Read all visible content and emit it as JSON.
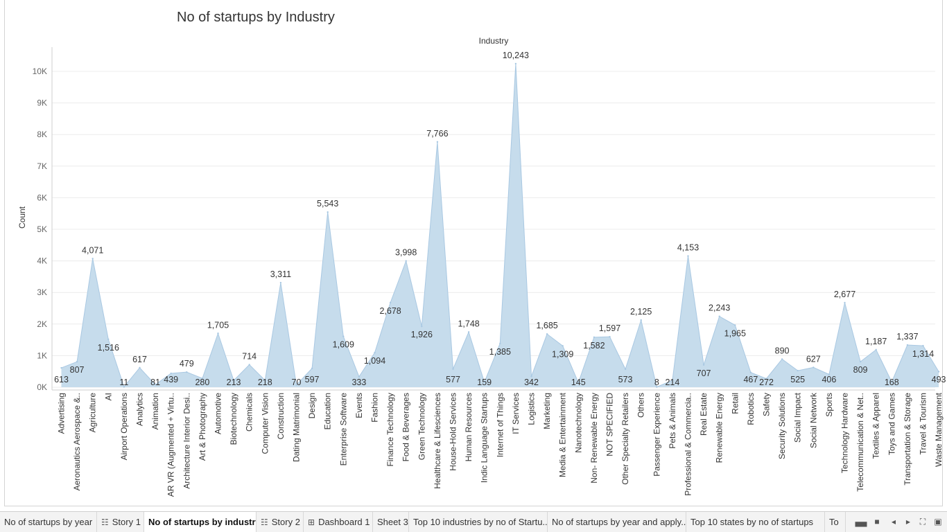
{
  "title": "No of startups by Industry",
  "chart_data": {
    "type": "area",
    "title": "No of startups by Industry",
    "xlabel": "Industry",
    "ylabel": "Count",
    "ylim": [
      0,
      10500
    ],
    "yticks": [
      0,
      1000,
      2000,
      3000,
      4000,
      5000,
      6000,
      7000,
      8000,
      9000,
      10000
    ],
    "ytick_labels": [
      "0K",
      "1K",
      "2K",
      "3K",
      "4K",
      "5K",
      "6K",
      "7K",
      "8K",
      "9K",
      "10K"
    ],
    "fill_color": "#c6dcec",
    "line_color": "#a9c8e2",
    "grid": true,
    "categories": [
      "Advertising",
      "Aeronautics Aerospace &..",
      "Agriculture",
      "AI",
      "Airport Operations",
      "Analytics",
      "Animation",
      "AR VR (Augmented + Virtu..",
      "Architecture Interior Desi..",
      "Art & Photography",
      "Automotive",
      "Biotechnology",
      "Chemicals",
      "Computer Vision",
      "Construction",
      "Dating Matrimonial",
      "Design",
      "Education",
      "Enterprise Software",
      "Events",
      "Fashion",
      "Finance Technology",
      "Food & Beverages",
      "Green Technology",
      "Healthcare & Lifesciences",
      "House-Hold Services",
      "Human Resources",
      "Indic Language Startups",
      "Internet of Things",
      "IT Services",
      "Logistics",
      "Marketing",
      "Media & Entertainment",
      "Nanotechnology",
      "Non- Renewable Energy",
      "NOT SPECIFIED",
      "Other Specialty Retailers",
      "Others",
      "Passenger Experience",
      "Pets & Animals",
      "Professional & Commercia..",
      "Real Estate",
      "Renewable Energy",
      "Retail",
      "Robotics",
      "Safety",
      "Security Solutions",
      "Social Impact",
      "Social Network",
      "Sports",
      "Technology Hardware",
      "Telecommunication & Net..",
      "Textiles & Apparel",
      "Toys and Games",
      "Transportation & Storage",
      "Travel & Tourism",
      "Waste Management"
    ],
    "values": [
      613,
      807,
      4071,
      1516,
      11,
      617,
      81,
      439,
      479,
      280,
      1705,
      213,
      714,
      218,
      3311,
      70,
      597,
      5543,
      1609,
      333,
      1094,
      2678,
      3998,
      1926,
      7766,
      577,
      1748,
      159,
      1385,
      10243,
      342,
      1685,
      1309,
      145,
      1582,
      1597,
      573,
      2125,
      8,
      214,
      4153,
      707,
      2243,
      1965,
      467,
      272,
      890,
      525,
      627,
      406,
      2677,
      809,
      1187,
      168,
      1337,
      1314,
      493
    ],
    "data_labels": [
      "613",
      "807",
      "4,071",
      "1,516",
      "11",
      "617",
      "81",
      "439",
      "479",
      "280",
      "1,705",
      "213",
      "714",
      "218",
      "3,311",
      "70",
      "597",
      "5,543",
      "1,609",
      "333",
      "1,094",
      "2,678",
      "3,998",
      "1,926",
      "7,766",
      "577",
      "1,748",
      "159",
      "1,385",
      "10,243",
      "342",
      "1,685",
      "1,309",
      "145",
      "1,582",
      "1,597",
      "573",
      "2,125",
      "8",
      "214",
      "4,153",
      "707",
      "2,243",
      "1,965",
      "467",
      "272",
      "890",
      "525",
      "627",
      "406",
      "2,677",
      "809",
      "1,187",
      "168",
      "1,337",
      "1,314",
      "493"
    ]
  },
  "tabs": [
    {
      "label": "No of startups by year",
      "icon": "",
      "active": false
    },
    {
      "label": "Story 1",
      "icon": "book-icon",
      "active": false
    },
    {
      "label": "No of startups by industry",
      "icon": "",
      "active": true
    },
    {
      "label": "Story 2",
      "icon": "book-icon",
      "active": false
    },
    {
      "label": "Dashboard 1",
      "icon": "dashboard-icon",
      "active": false
    },
    {
      "label": "Sheet 3",
      "icon": "",
      "active": false
    },
    {
      "label": "Top 10 industries by no of Startu...",
      "icon": "",
      "active": false
    },
    {
      "label": "No of startups by year and apply...",
      "icon": "",
      "active": false
    },
    {
      "label": "Top 10 states by no of startups",
      "icon": "",
      "active": false
    },
    {
      "label": "To",
      "icon": "",
      "active": false
    }
  ],
  "tab_controls": [
    "filmstrip-icon",
    "grid-icon",
    "prev-icon",
    "next-icon",
    "fullscreen-icon",
    "present-icon"
  ]
}
